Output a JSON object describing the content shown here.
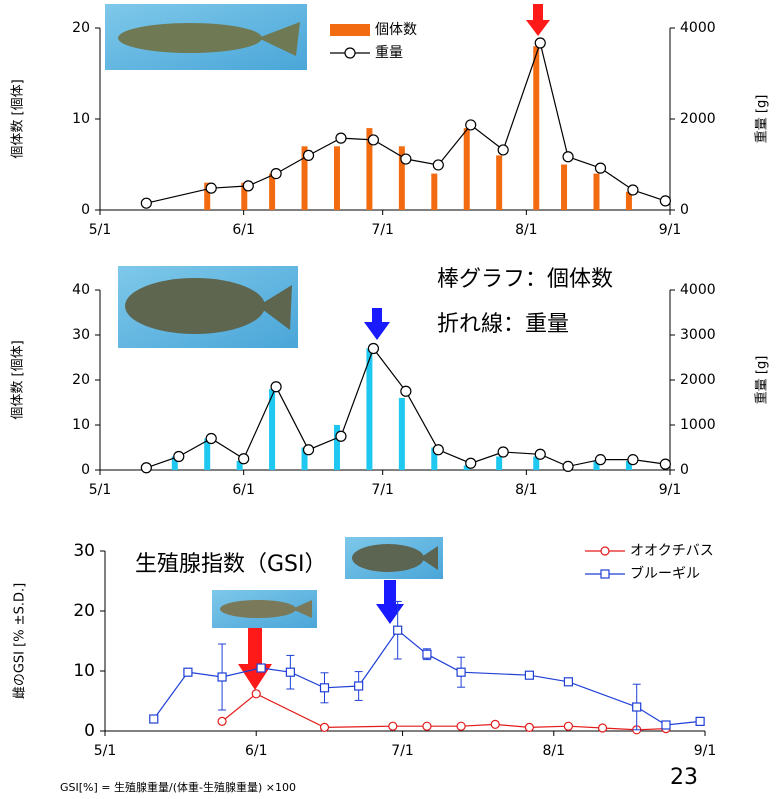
{
  "chart_data": [
    {
      "type": "bar_line",
      "x": [
        "5/11",
        "5/25",
        "6/2",
        "6/8",
        "6/15",
        "6/22",
        "6/29",
        "7/6",
        "7/13",
        "7/20",
        "7/27",
        "8/4",
        "8/10",
        "8/17",
        "8/24",
        "8/31"
      ],
      "series": [
        {
          "name": "個体数",
          "type": "bar",
          "color": "#f36b10",
          "values": [
            0,
            3,
            3,
            4,
            7,
            7,
            9,
            7,
            4,
            9,
            6,
            18,
            5,
            4,
            2,
            0
          ]
        },
        {
          "name": "重量",
          "type": "line",
          "axis": "y2",
          "marker": "circle",
          "color": "#000000",
          "values": [
            150,
            480,
            530,
            800,
            1200,
            1580,
            1540,
            1120,
            990,
            1870,
            1320,
            3670,
            1170,
            920,
            440,
            200
          ]
        }
      ],
      "xlim": [
        "5/1",
        "9/1"
      ],
      "xticks": [
        "5/1",
        "6/1",
        "7/1",
        "8/1",
        "9/1"
      ],
      "ylim": [
        0,
        20
      ],
      "yticks": [
        0,
        10,
        20
      ],
      "y2lim": [
        0,
        4000
      ],
      "y2ticks": [
        0,
        2000,
        4000
      ],
      "ylabel": "個体数 [個体]",
      "y2label": "重量 [g]",
      "legend": "upper-center"
    },
    {
      "type": "bar_line",
      "x": [
        "5/11",
        "5/18",
        "5/25",
        "6/1",
        "6/8",
        "6/15",
        "6/22",
        "6/29",
        "7/6",
        "7/13",
        "7/20",
        "7/27",
        "8/4",
        "8/10",
        "8/17",
        "8/24",
        "8/31"
      ],
      "series": [
        {
          "name": "個体数",
          "type": "bar",
          "color": "#1ec8f0",
          "values": [
            0,
            3,
            7,
            2,
            18,
            5,
            10,
            27,
            16,
            5,
            1,
            3,
            3,
            0,
            2,
            2,
            0
          ]
        },
        {
          "name": "重量",
          "type": "line",
          "axis": "y2",
          "marker": "circle",
          "color": "#000000",
          "values": [
            50,
            300,
            700,
            250,
            1850,
            450,
            750,
            2700,
            1750,
            450,
            150,
            400,
            350,
            80,
            230,
            230,
            130
          ]
        }
      ],
      "xlim": [
        "5/1",
        "9/1"
      ],
      "xticks": [
        "5/1",
        "6/1",
        "7/1",
        "8/1",
        "9/1"
      ],
      "ylim": [
        0,
        40
      ],
      "yticks": [
        0,
        10,
        20,
        30,
        40
      ],
      "y2lim": [
        0,
        4000
      ],
      "y2ticks": [
        0,
        1000,
        2000,
        3000,
        4000
      ],
      "ylabel": "個体数 [個体]",
      "y2label": "重量 [g]",
      "annotations": [
        "棒グラフ：個体数",
        "折れ線：重量"
      ]
    },
    {
      "type": "line",
      "title": "生殖腺指数（GSI）",
      "series": [
        {
          "name": "オオクチバス",
          "type": "line",
          "marker": "circle",
          "color": "#e31b1b",
          "x": [
            "5/25",
            "6/1",
            "6/15",
            "6/29",
            "7/6",
            "7/13",
            "7/20",
            "7/27",
            "8/4",
            "8/11",
            "8/18",
            "8/24"
          ],
          "values": [
            1.6,
            6.2,
            0.6,
            0.8,
            0.8,
            0.8,
            1.1,
            0.6,
            0.8,
            0.5,
            0.2,
            0.4
          ]
        },
        {
          "name": "ブルーギル",
          "type": "line",
          "marker": "square",
          "color": "#1f3fd6",
          "x": [
            "5/11",
            "5/18",
            "5/25",
            "6/2",
            "6/8",
            "6/15",
            "6/22",
            "6/30",
            "7/6",
            "7/13",
            "7/27",
            "8/4",
            "8/18",
            "8/24",
            "8/31"
          ],
          "values": [
            2,
            9.8,
            9,
            10.5,
            9.8,
            7.2,
            7.5,
            16.8,
            12.8,
            9.8,
            9.3,
            8.2,
            4,
            1,
            1.6
          ],
          "errors": [
            null,
            null,
            5.5,
            null,
            2.8,
            2.5,
            2.4,
            4.8,
            0.9,
            2.5,
            null,
            null,
            3.8,
            null,
            null
          ]
        }
      ],
      "xlim": [
        "5/1",
        "9/1"
      ],
      "xticks": [
        "5/1",
        "6/1",
        "7/1",
        "8/1",
        "9/1"
      ],
      "ylim": [
        0,
        30
      ],
      "yticks": [
        0,
        10,
        20,
        30
      ],
      "ylabel": "雌のGSI [% ±S.D.]",
      "legend": "upper-right"
    }
  ],
  "footnote": "GSI[%] = 生殖腺重量/(体重-生殖腺重量) ×100",
  "page_number": "23"
}
